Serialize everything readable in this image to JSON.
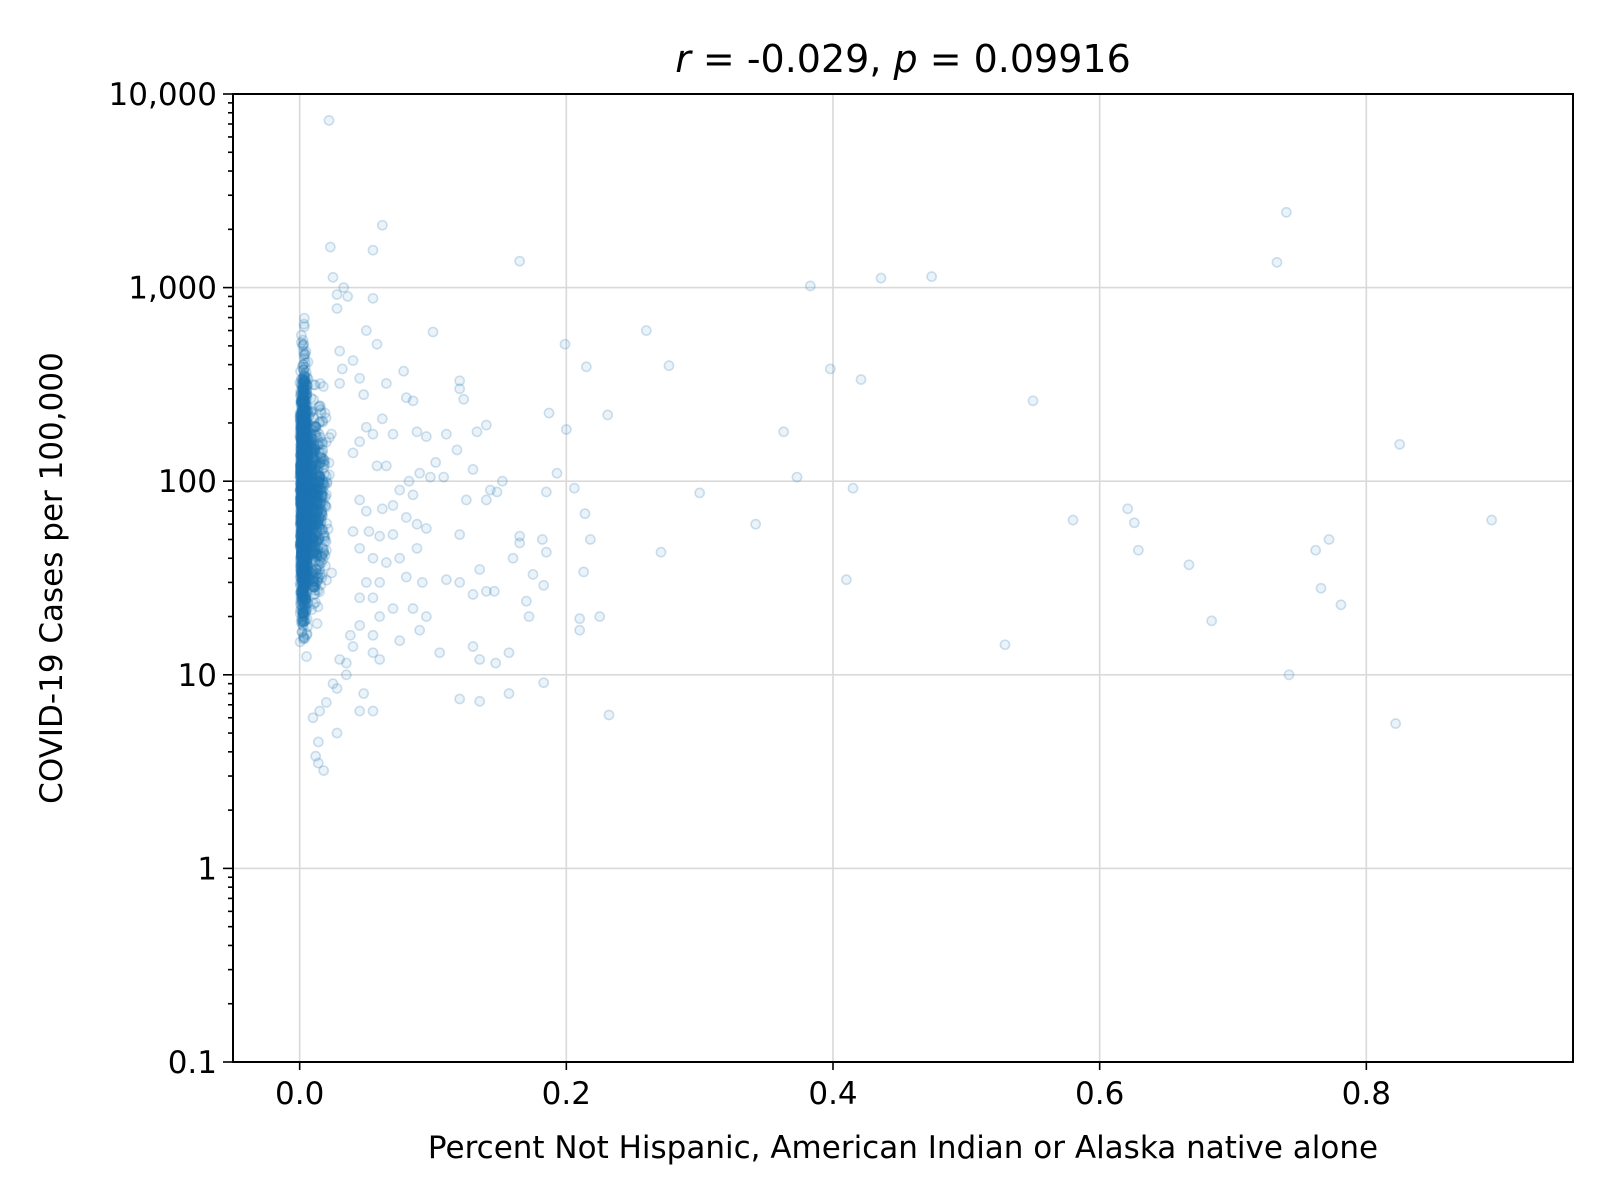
{
  "chart_data": {
    "type": "scatter",
    "title": {
      "r_symbol": "r",
      "r_value": " = -0.029, ",
      "p_symbol": "p",
      "p_value": " =  0.09916"
    },
    "xlabel": "Percent Not Hispanic, American Indian or Alaska native alone",
    "ylabel": "COVID-19 Cases per 100,000",
    "xlim": [
      -0.05,
      0.955
    ],
    "ylim": [
      0.1,
      10000
    ],
    "yscale": "log",
    "grid": true,
    "color": "#1f77b4",
    "x_ticks": [
      {
        "value": 0.0,
        "label": "0.0"
      },
      {
        "value": 0.2,
        "label": "0.2"
      },
      {
        "value": 0.4,
        "label": "0.4"
      },
      {
        "value": 0.6,
        "label": "0.6"
      },
      {
        "value": 0.8,
        "label": "0.8"
      }
    ],
    "y_ticks": [
      {
        "value": 0.1,
        "label": "0.1"
      },
      {
        "value": 1,
        "label": "1"
      },
      {
        "value": 10,
        "label": "10"
      },
      {
        "value": 100,
        "label": "100"
      },
      {
        "value": 1000,
        "label": "1,000"
      },
      {
        "value": 10000,
        "label": "10,000"
      }
    ],
    "points": [
      [
        0.022,
        7300
      ],
      [
        0.74,
        2450
      ],
      [
        0.733,
        1350
      ],
      [
        0.165,
        1370
      ],
      [
        0.062,
        2100
      ],
      [
        0.055,
        1560
      ],
      [
        0.023,
        1620
      ],
      [
        0.383,
        1020
      ],
      [
        0.436,
        1120
      ],
      [
        0.474,
        1140
      ],
      [
        0.1,
        590
      ],
      [
        0.26,
        600
      ],
      [
        0.199,
        510
      ],
      [
        0.277,
        395
      ],
      [
        0.215,
        390
      ],
      [
        0.398,
        380
      ],
      [
        0.421,
        335
      ],
      [
        0.55,
        260
      ],
      [
        0.187,
        225
      ],
      [
        0.231,
        220
      ],
      [
        0.2,
        185
      ],
      [
        0.363,
        180
      ],
      [
        0.825,
        155
      ],
      [
        0.193,
        110
      ],
      [
        0.373,
        105
      ],
      [
        0.206,
        92
      ],
      [
        0.415,
        92
      ],
      [
        0.3,
        87
      ],
      [
        0.185,
        88
      ],
      [
        0.165,
        52
      ],
      [
        0.271,
        43
      ],
      [
        0.342,
        60
      ],
      [
        0.58,
        63
      ],
      [
        0.621,
        72
      ],
      [
        0.626,
        61
      ],
      [
        0.629,
        44
      ],
      [
        0.667,
        37
      ],
      [
        0.762,
        44
      ],
      [
        0.772,
        50
      ],
      [
        0.894,
        63
      ],
      [
        0.41,
        31
      ],
      [
        0.766,
        28
      ],
      [
        0.781,
        23
      ],
      [
        0.684,
        19
      ],
      [
        0.529,
        14.3
      ],
      [
        0.742,
        10
      ],
      [
        0.822,
        5.6
      ],
      [
        0.232,
        6.2
      ],
      [
        0.21,
        17
      ],
      [
        0.225,
        20
      ],
      [
        0.21,
        19.5
      ],
      [
        0.213,
        34
      ],
      [
        0.218,
        50
      ],
      [
        0.214,
        68
      ],
      [
        0.12,
        330
      ],
      [
        0.12,
        300
      ],
      [
        0.123,
        265
      ],
      [
        0.14,
        195
      ],
      [
        0.133,
        180
      ],
      [
        0.11,
        175
      ],
      [
        0.118,
        145
      ],
      [
        0.102,
        125
      ],
      [
        0.13,
        115
      ],
      [
        0.108,
        105
      ],
      [
        0.152,
        100
      ],
      [
        0.143,
        90
      ],
      [
        0.125,
        80
      ],
      [
        0.14,
        80
      ],
      [
        0.148,
        88
      ],
      [
        0.16,
        40
      ],
      [
        0.165,
        48
      ],
      [
        0.182,
        50
      ],
      [
        0.185,
        43
      ],
      [
        0.175,
        33
      ],
      [
        0.17,
        24
      ],
      [
        0.172,
        20
      ],
      [
        0.183,
        29
      ],
      [
        0.135,
        35
      ],
      [
        0.14,
        27
      ],
      [
        0.146,
        27
      ],
      [
        0.13,
        26
      ],
      [
        0.12,
        30
      ],
      [
        0.11,
        31
      ],
      [
        0.12,
        53
      ],
      [
        0.105,
        13
      ],
      [
        0.13,
        14
      ],
      [
        0.135,
        12
      ],
      [
        0.147,
        11.5
      ],
      [
        0.157,
        13
      ],
      [
        0.12,
        7.5
      ],
      [
        0.135,
        7.3
      ],
      [
        0.157,
        8
      ],
      [
        0.183,
        9.1
      ],
      [
        0.028,
        920
      ],
      [
        0.025,
        1130
      ],
      [
        0.033,
        1000
      ],
      [
        0.036,
        900
      ],
      [
        0.055,
        880
      ],
      [
        0.028,
        780
      ],
      [
        0.05,
        600
      ],
      [
        0.058,
        510
      ],
      [
        0.03,
        470
      ],
      [
        0.04,
        420
      ],
      [
        0.032,
        380
      ],
      [
        0.045,
        340
      ],
      [
        0.03,
        320
      ],
      [
        0.065,
        320
      ],
      [
        0.078,
        370
      ],
      [
        0.08,
        270
      ],
      [
        0.085,
        260
      ],
      [
        0.048,
        280
      ],
      [
        0.062,
        210
      ],
      [
        0.05,
        190
      ],
      [
        0.055,
        175
      ],
      [
        0.07,
        175
      ],
      [
        0.088,
        180
      ],
      [
        0.095,
        170
      ],
      [
        0.045,
        160
      ],
      [
        0.058,
        120
      ],
      [
        0.065,
        120
      ],
      [
        0.04,
        140
      ],
      [
        0.09,
        110
      ],
      [
        0.098,
        105
      ],
      [
        0.082,
        100
      ],
      [
        0.075,
        90
      ],
      [
        0.085,
        85
      ],
      [
        0.07,
        75
      ],
      [
        0.045,
        80
      ],
      [
        0.05,
        70
      ],
      [
        0.062,
        72
      ],
      [
        0.08,
        65
      ],
      [
        0.088,
        60
      ],
      [
        0.095,
        57
      ],
      [
        0.04,
        55
      ],
      [
        0.052,
        55
      ],
      [
        0.06,
        52
      ],
      [
        0.07,
        53
      ],
      [
        0.045,
        45
      ],
      [
        0.055,
        40
      ],
      [
        0.065,
        38
      ],
      [
        0.075,
        40
      ],
      [
        0.088,
        45
      ],
      [
        0.05,
        30
      ],
      [
        0.06,
        30
      ],
      [
        0.08,
        32
      ],
      [
        0.092,
        30
      ],
      [
        0.045,
        25
      ],
      [
        0.055,
        25
      ],
      [
        0.07,
        22
      ],
      [
        0.085,
        22
      ],
      [
        0.095,
        20
      ],
      [
        0.045,
        18
      ],
      [
        0.055,
        16
      ],
      [
        0.06,
        20
      ],
      [
        0.075,
        15
      ],
      [
        0.09,
        17
      ],
      [
        0.04,
        14
      ],
      [
        0.055,
        13
      ],
      [
        0.06,
        12
      ],
      [
        0.048,
        8
      ],
      [
        0.045,
        6.5
      ],
      [
        0.055,
        6.5
      ],
      [
        0.03,
        12
      ],
      [
        0.035,
        10
      ],
      [
        0.028,
        8.5
      ],
      [
        0.028,
        5
      ],
      [
        0.018,
        3.2
      ],
      [
        0.014,
        3.5
      ],
      [
        0.012,
        3.8
      ],
      [
        0.014,
        4.5
      ],
      [
        0.01,
        6
      ],
      [
        0.015,
        6.5
      ],
      [
        0.02,
        7.2
      ],
      [
        0.025,
        9
      ],
      [
        0.035,
        11.5
      ],
      [
        0.038,
        16
      ]
    ]
  }
}
